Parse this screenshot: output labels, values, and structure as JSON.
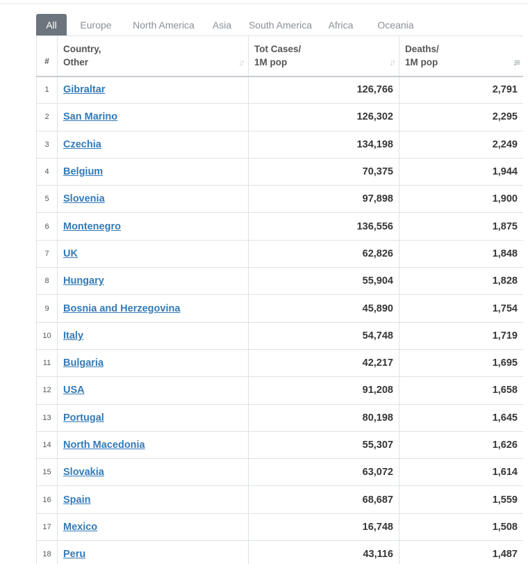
{
  "tabs": [
    {
      "label": "All",
      "active": true
    },
    {
      "label": "Europe",
      "active": false
    },
    {
      "label": "North America",
      "active": false
    },
    {
      "label": "Asia",
      "active": false
    },
    {
      "label": "South America",
      "active": false
    },
    {
      "label": "Africa",
      "active": false
    },
    {
      "label": "Oceania",
      "active": false
    }
  ],
  "table": {
    "headers": {
      "rank": "#",
      "country_line1": "Country,",
      "country_line2": "Other",
      "cases_line1": "Tot Cases/",
      "cases_line2": "1M pop",
      "deaths_line1": "Deaths/",
      "deaths_line2": "1M pop"
    },
    "rows": [
      {
        "rank": "1",
        "country": "Gibraltar",
        "cases": "126,766",
        "deaths": "2,791"
      },
      {
        "rank": "2",
        "country": "San Marino",
        "cases": "126,302",
        "deaths": "2,295"
      },
      {
        "rank": "3",
        "country": "Czechia",
        "cases": "134,198",
        "deaths": "2,249"
      },
      {
        "rank": "4",
        "country": "Belgium",
        "cases": "70,375",
        "deaths": "1,944"
      },
      {
        "rank": "5",
        "country": "Slovenia",
        "cases": "97,898",
        "deaths": "1,900"
      },
      {
        "rank": "6",
        "country": "Montenegro",
        "cases": "136,556",
        "deaths": "1,875"
      },
      {
        "rank": "7",
        "country": "UK",
        "cases": "62,826",
        "deaths": "1,848"
      },
      {
        "rank": "8",
        "country": "Hungary",
        "cases": "55,904",
        "deaths": "1,828"
      },
      {
        "rank": "9",
        "country": "Bosnia and Herzegovina",
        "cases": "45,890",
        "deaths": "1,754"
      },
      {
        "rank": "10",
        "country": "Italy",
        "cases": "54,748",
        "deaths": "1,719"
      },
      {
        "rank": "11",
        "country": "Bulgaria",
        "cases": "42,217",
        "deaths": "1,695"
      },
      {
        "rank": "12",
        "country": "USA",
        "cases": "91,208",
        "deaths": "1,658"
      },
      {
        "rank": "13",
        "country": "Portugal",
        "cases": "80,198",
        "deaths": "1,645"
      },
      {
        "rank": "14",
        "country": "North Macedonia",
        "cases": "55,307",
        "deaths": "1,626"
      },
      {
        "rank": "15",
        "country": "Slovakia",
        "cases": "63,072",
        "deaths": "1,614"
      },
      {
        "rank": "16",
        "country": "Spain",
        "cases": "68,687",
        "deaths": "1,559"
      },
      {
        "rank": "17",
        "country": "Mexico",
        "cases": "16,748",
        "deaths": "1,508"
      },
      {
        "rank": "18",
        "country": "Peru",
        "cases": "43,116",
        "deaths": "1,487"
      }
    ]
  },
  "icons": {
    "sort_neutral": "sort-icon",
    "sort_active_desc": "sort-desc-icon"
  },
  "colors": {
    "active_tab_bg": "#6c757d",
    "link": "#337ab7",
    "border": "#dee2e6"
  }
}
